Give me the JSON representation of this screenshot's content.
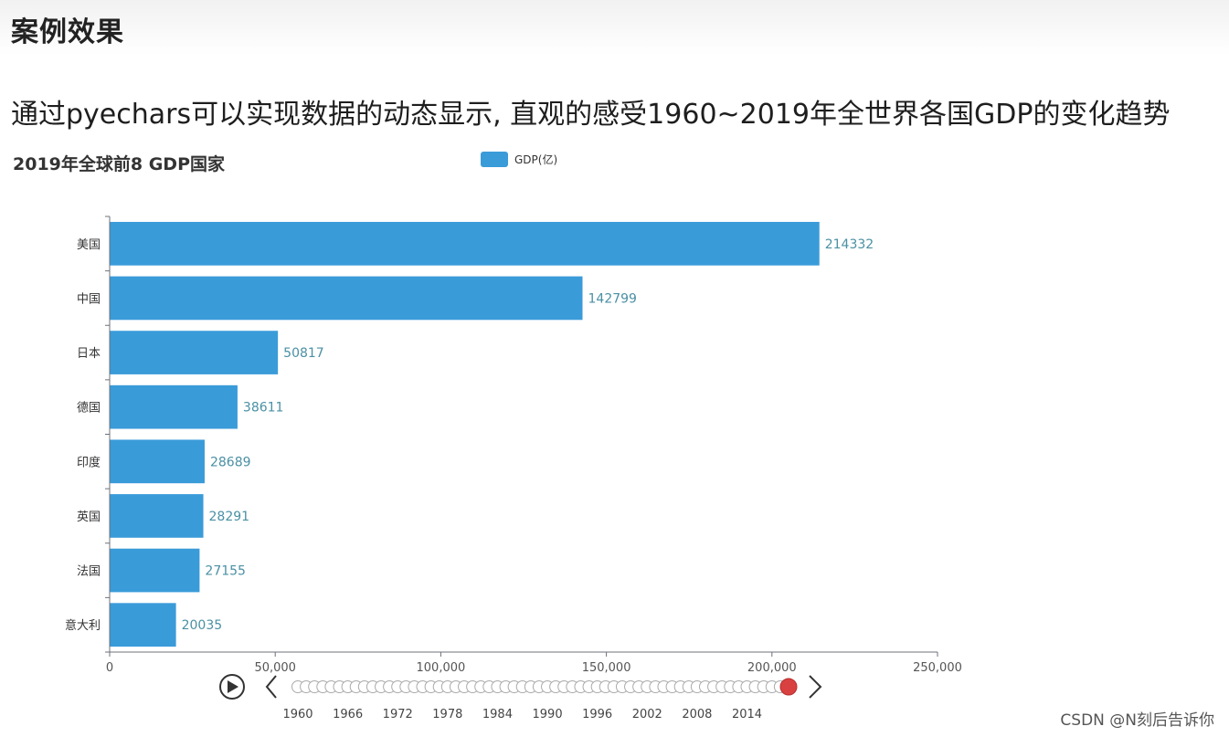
{
  "page": {
    "heading": "案例效果",
    "subtitle": "通过pyechars可以实现数据的动态显示, 直观的感受1960~2019年全世界各国GDP的变化趋势",
    "watermark": "CSDN @N刻后告诉你"
  },
  "colors": {
    "bar": "#3a9bd9",
    "label": "#4a90a4",
    "axis": "#6e7079",
    "timeline_dot": "#d9d9d9",
    "timeline_current": "#d94040"
  },
  "chart_data": {
    "type": "bar",
    "orientation": "horizontal",
    "title": "2019年全球前8 GDP国家",
    "legend": [
      "GDP(亿)"
    ],
    "legend_position": "top-center",
    "categories": [
      "美国",
      "中国",
      "日本",
      "德国",
      "印度",
      "英国",
      "法国",
      "意大利"
    ],
    "series": [
      {
        "name": "GDP(亿)",
        "values": [
          214332,
          142799,
          50817,
          38611,
          28689,
          28291,
          27155,
          20035
        ]
      }
    ],
    "value_labels": [
      "214332",
      "142799",
      "50817",
      "38611",
      "28689",
      "28291",
      "27155",
      "20035"
    ],
    "xlim": [
      0,
      250000
    ],
    "x_ticks": [
      "0",
      "50,000",
      "100,000",
      "150,000",
      "200,000",
      "250,000"
    ],
    "grid": false
  },
  "timeline": {
    "play_icon": "play-icon",
    "prev_icon": "chevron-left-icon",
    "next_icon": "chevron-right-icon",
    "year_labels": [
      "1960",
      "1966",
      "1972",
      "1978",
      "1984",
      "1990",
      "1996",
      "2002",
      "2008",
      "2014"
    ],
    "year_start": 1960,
    "year_end": 2019,
    "current_year": 2019
  }
}
